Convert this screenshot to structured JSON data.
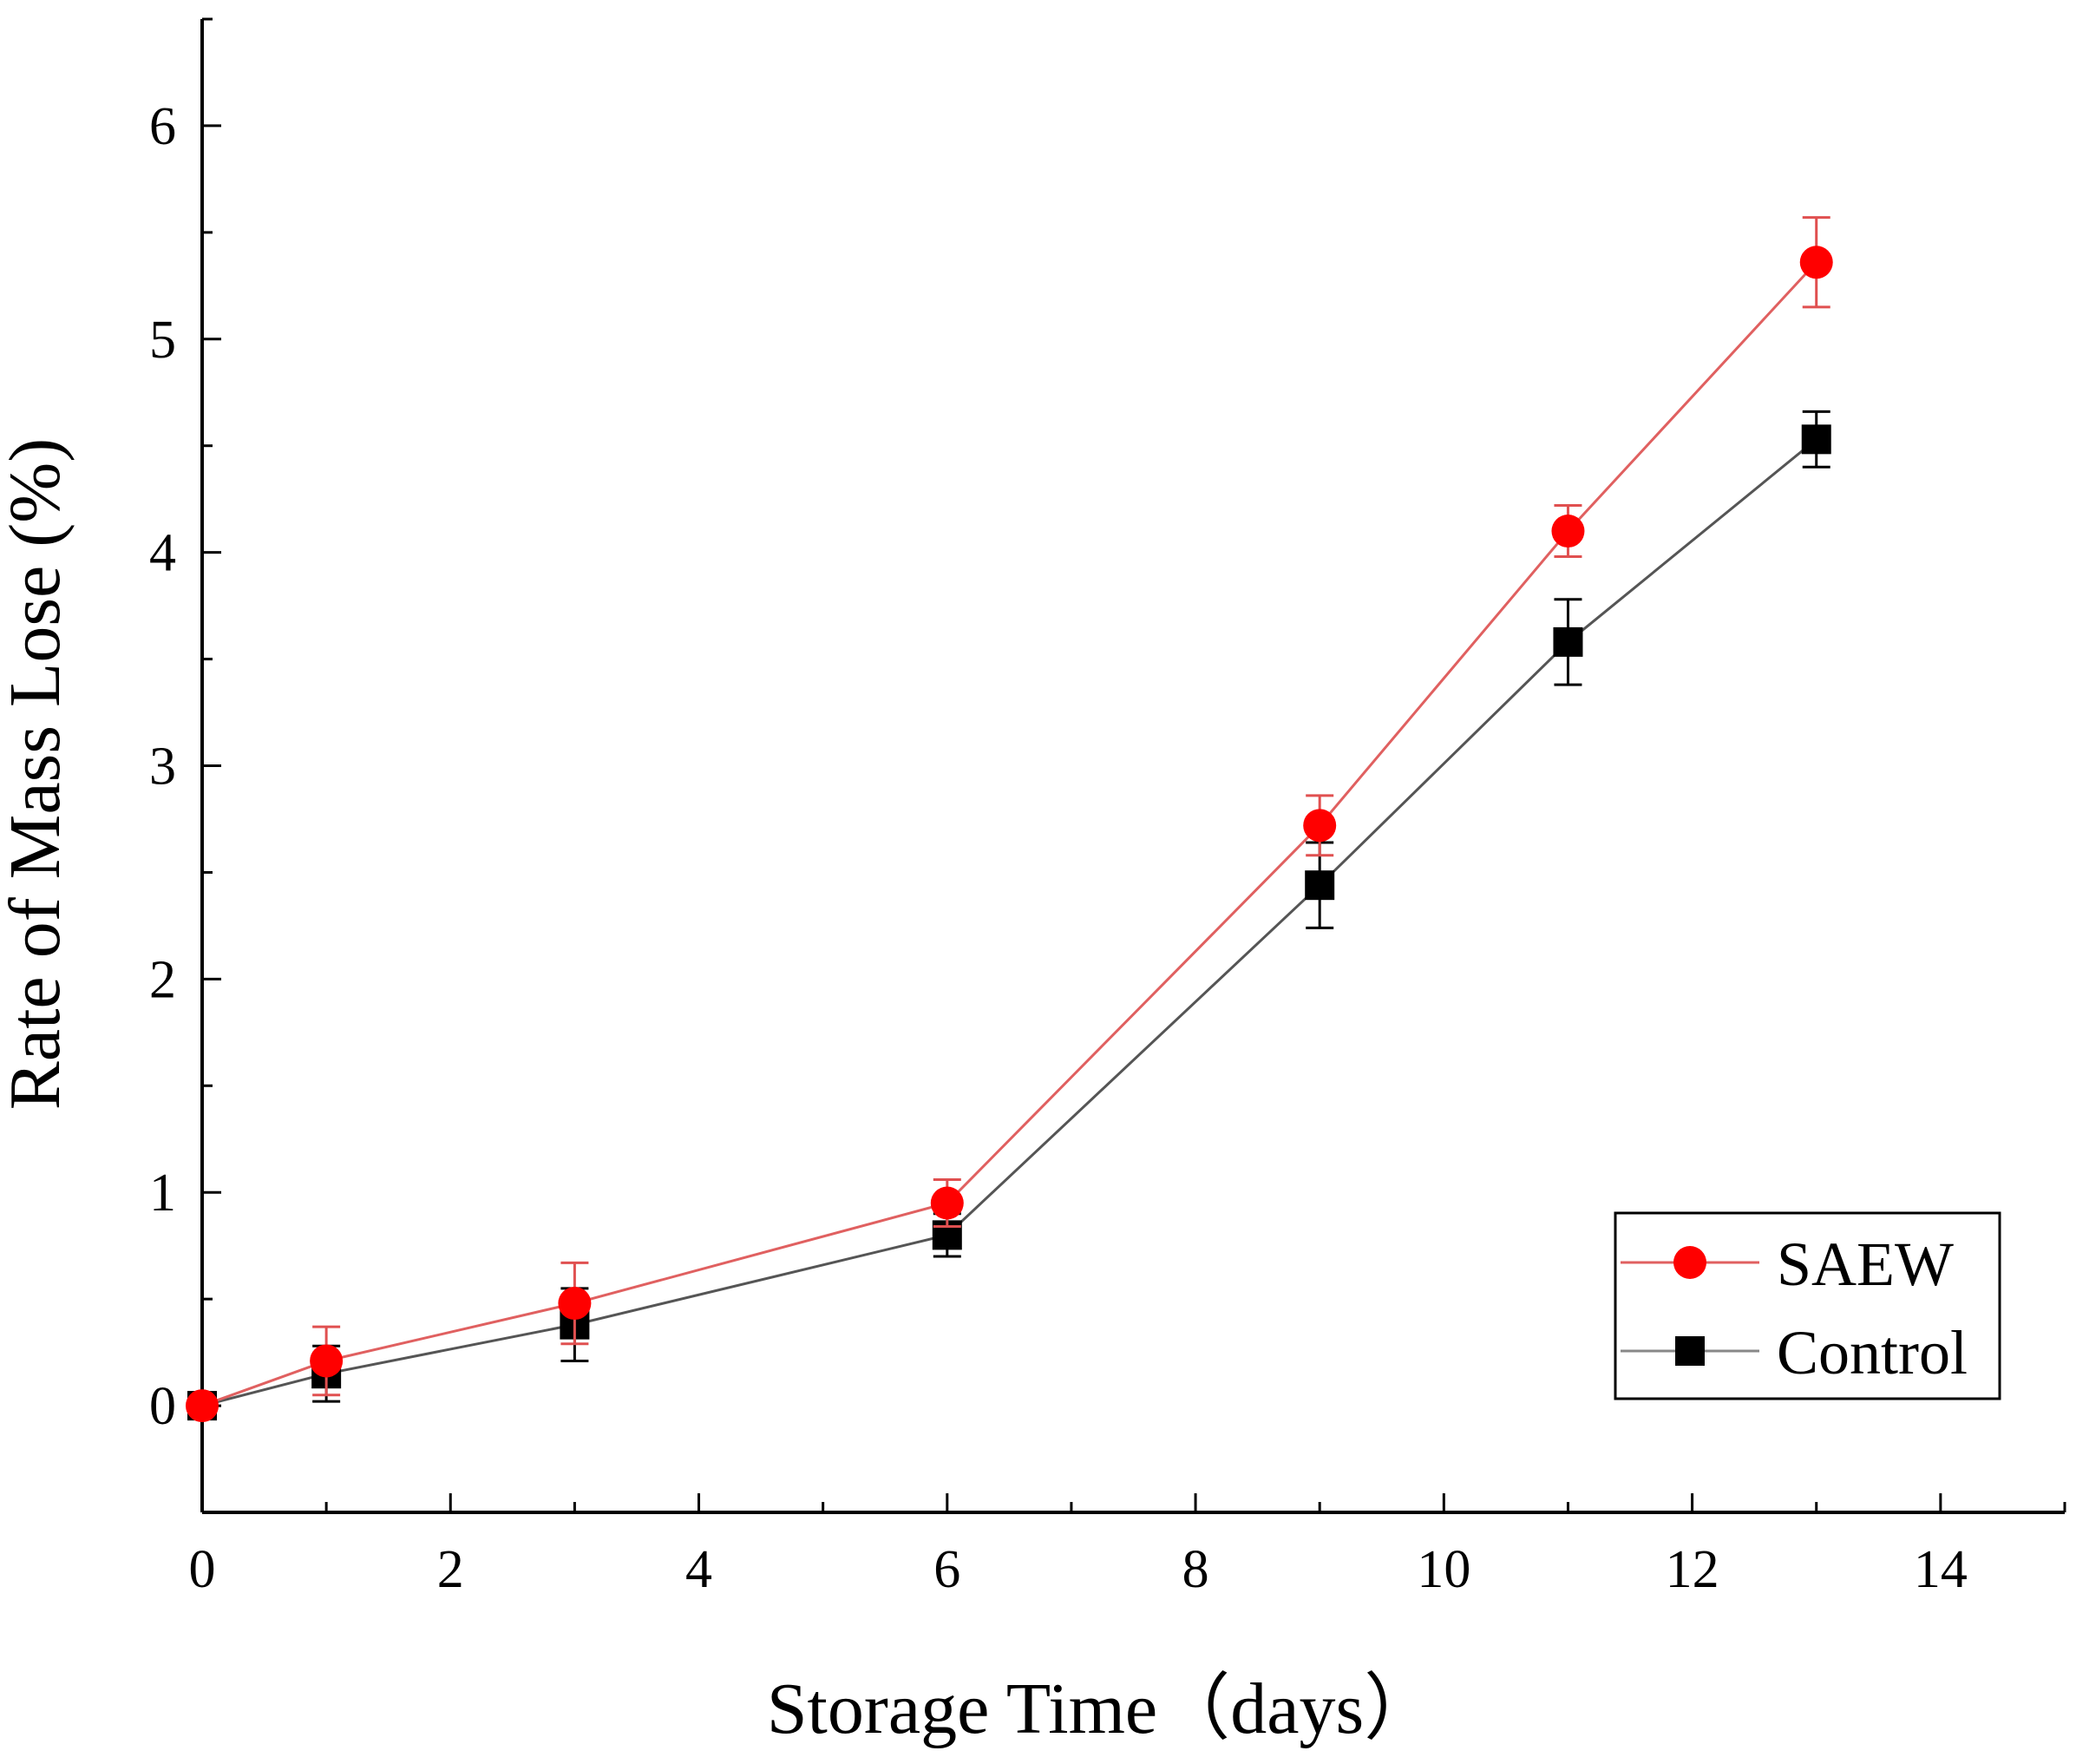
{
  "chart_data": {
    "type": "line",
    "title": "",
    "xlabel": "Storage Time（days）",
    "ylabel": "Rate of Mass Lose (%)",
    "xlim": [
      0,
      15
    ],
    "ylim": [
      -0.5,
      6.5
    ],
    "xticks": [
      0,
      2,
      4,
      6,
      8,
      10,
      12,
      14
    ],
    "yticks": [
      0,
      1,
      2,
      3,
      4,
      5,
      6
    ],
    "x": [
      0,
      1,
      3,
      6,
      9,
      11,
      13
    ],
    "series": [
      {
        "name": "SAEW",
        "color": "#ff0000",
        "line_color": "#e06060",
        "marker": "circle",
        "values": [
          0,
          0.21,
          0.48,
          0.95,
          2.72,
          4.1,
          5.36
        ],
        "errors": [
          0,
          0.16,
          0.19,
          0.11,
          0.14,
          0.12,
          0.21
        ]
      },
      {
        "name": "Control",
        "color": "#000000",
        "line_color": "#555555",
        "marker": "square",
        "values": [
          0,
          0.15,
          0.38,
          0.8,
          2.44,
          3.58,
          4.53
        ],
        "errors": [
          0,
          0.13,
          0.17,
          0.1,
          0.2,
          0.2,
          0.13
        ]
      }
    ],
    "legend": {
      "position": "bottom-right",
      "entries": [
        "SAEW",
        "Control"
      ]
    }
  }
}
